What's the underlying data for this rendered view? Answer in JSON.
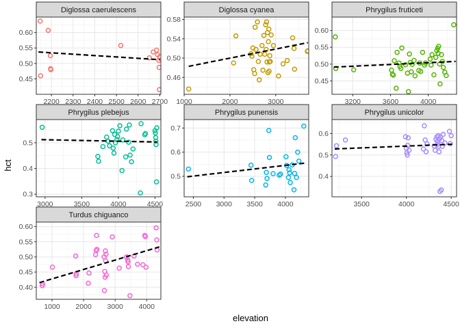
{
  "chart_data": {
    "type": "scatter",
    "xlabel": "elevation",
    "ylabel": "hct",
    "trend_line": "linear fit, dashed black",
    "panels": [
      {
        "title": "Diglossa caerulescens",
        "color": "#F8766D",
        "xlim": [
          2130,
          2705
        ],
        "ylim": [
          0.4,
          0.65
        ],
        "x_ticks": [
          2200,
          2300,
          2400,
          2500,
          2600,
          2700
        ],
        "y_ticks": [
          0.45,
          0.5,
          0.55,
          0.6
        ],
        "y_tick_labels": [
          "0.45",
          "0.50",
          "0.55",
          "0.60"
        ],
        "fit": [
          [
            2140,
            0.537
          ],
          [
            2700,
            0.512
          ]
        ],
        "points": [
          [
            2148,
            0.637
          ],
          [
            2150,
            0.46
          ],
          [
            2185,
            0.607
          ],
          [
            2195,
            0.525
          ],
          [
            2196,
            0.483
          ],
          [
            2197,
            0.48
          ],
          [
            2520,
            0.558
          ],
          [
            2652,
            0.518
          ],
          [
            2670,
            0.537
          ],
          [
            2685,
            0.543
          ],
          [
            2690,
            0.528
          ],
          [
            2695,
            0.51
          ],
          [
            2697,
            0.487
          ],
          [
            2698,
            0.415
          ],
          [
            2700,
            0.522
          ]
        ]
      },
      {
        "title": "Diglossa cyanea",
        "color": "#C49A00",
        "xlim": [
          1000,
          3720
        ],
        "ylim": [
          0.425,
          0.585
        ],
        "x_ticks": [
          1000,
          2000,
          3000
        ],
        "y_ticks": [
          0.46,
          0.5,
          0.54,
          0.58
        ],
        "y_tick_labels": [
          "0.46",
          "0.50",
          "0.54",
          "0.58"
        ],
        "fit": [
          [
            1100,
            0.483
          ],
          [
            3700,
            0.532
          ]
        ],
        "points": [
          [
            1100,
            0.436
          ],
          [
            2080,
            0.49
          ],
          [
            2130,
            0.546
          ],
          [
            2460,
            0.509
          ],
          [
            2480,
            0.504
          ],
          [
            2500,
            0.521
          ],
          [
            2520,
            0.476
          ],
          [
            2540,
            0.468
          ],
          [
            2550,
            0.564
          ],
          [
            2570,
            0.518
          ],
          [
            2600,
            0.575
          ],
          [
            2620,
            0.493
          ],
          [
            2640,
            0.455
          ],
          [
            2660,
            0.508
          ],
          [
            2700,
            0.526
          ],
          [
            2720,
            0.475
          ],
          [
            2740,
            0.547
          ],
          [
            2760,
            0.508
          ],
          [
            2780,
            0.569
          ],
          [
            2790,
            0.518
          ],
          [
            2800,
            0.575
          ],
          [
            2810,
            0.492
          ],
          [
            2820,
            0.553
          ],
          [
            2830,
            0.47
          ],
          [
            2840,
            0.534
          ],
          [
            2850,
            0.56
          ],
          [
            2855,
            0.473
          ],
          [
            2860,
            0.492
          ],
          [
            2870,
            0.505
          ],
          [
            2880,
            0.493
          ],
          [
            2900,
            0.548
          ],
          [
            2950,
            0.526
          ],
          [
            3060,
            0.463
          ],
          [
            3160,
            0.488
          ],
          [
            3250,
            0.495
          ],
          [
            3370,
            0.542
          ],
          [
            3400,
            0.52
          ],
          [
            3410,
            0.477
          ],
          [
            3690,
            0.514
          ],
          [
            3700,
            0.515
          ]
        ]
      },
      {
        "title": "Phrygilus fruticeti",
        "color": "#53B400",
        "xlim": [
          2980,
          4300
        ],
        "ylim": [
          0.41,
          0.64
        ],
        "x_ticks": [
          3200,
          3600,
          4000
        ],
        "y_ticks": [
          0.45,
          0.5,
          0.55,
          0.6
        ],
        "y_tick_labels": [
          "0.45",
          "0.50",
          "0.55",
          "0.60"
        ],
        "fit": [
          [
            3000,
            0.491
          ],
          [
            4290,
            0.508
          ]
        ],
        "points": [
          [
            3015,
            0.581
          ],
          [
            3020,
            0.487
          ],
          [
            3210,
            0.483
          ],
          [
            3610,
            0.482
          ],
          [
            3620,
            0.47
          ],
          [
            3630,
            0.467
          ],
          [
            3640,
            0.51
          ],
          [
            3660,
            0.428
          ],
          [
            3670,
            0.535
          ],
          [
            3690,
            0.503
          ],
          [
            3700,
            0.493
          ],
          [
            3710,
            0.487
          ],
          [
            3720,
            0.548
          ],
          [
            3760,
            0.498
          ],
          [
            3780,
            0.473
          ],
          [
            3790,
            0.418
          ],
          [
            3800,
            0.53
          ],
          [
            3810,
            0.505
          ],
          [
            3820,
            0.477
          ],
          [
            3830,
            0.499
          ],
          [
            3850,
            0.511
          ],
          [
            3860,
            0.465
          ],
          [
            3900,
            0.481
          ],
          [
            3910,
            0.503
          ],
          [
            3920,
            0.478
          ],
          [
            3940,
            0.535
          ],
          [
            3960,
            0.497
          ],
          [
            3970,
            0.503
          ],
          [
            4020,
            0.515
          ],
          [
            4030,
            0.497
          ],
          [
            4040,
            0.528
          ],
          [
            4060,
            0.468
          ],
          [
            4080,
            0.52
          ],
          [
            4090,
            0.54
          ],
          [
            4100,
            0.547
          ],
          [
            4105,
            0.532
          ],
          [
            4110,
            0.553
          ],
          [
            4120,
            0.5
          ],
          [
            4125,
            0.441
          ],
          [
            4140,
            0.528
          ],
          [
            4150,
            0.508
          ],
          [
            4160,
            0.49
          ],
          [
            4175,
            0.476
          ],
          [
            4190,
            0.466
          ],
          [
            4270,
            0.617
          ]
        ]
      },
      {
        "title": "Phrygilus plebejus",
        "color": "#00C094",
        "xlim": [
          2880,
          4580
        ],
        "ylim": [
          0.29,
          0.59
        ],
        "x_ticks": [
          3000,
          3500,
          4000,
          4500
        ],
        "y_ticks": [
          0.3,
          0.4,
          0.5
        ],
        "y_tick_labels": [
          "0.3",
          "0.4",
          "0.5"
        ],
        "fit": [
          [
            2950,
            0.512
          ],
          [
            4530,
            0.503
          ]
        ],
        "points": [
          [
            2960,
            0.56
          ],
          [
            3720,
            0.447
          ],
          [
            3730,
            0.428
          ],
          [
            3790,
            0.485
          ],
          [
            3840,
            0.522
          ],
          [
            3860,
            0.506
          ],
          [
            3880,
            0.488
          ],
          [
            3920,
            0.547
          ],
          [
            3930,
            0.479
          ],
          [
            3940,
            0.46
          ],
          [
            3950,
            0.532
          ],
          [
            3960,
            0.5
          ],
          [
            3980,
            0.512
          ],
          [
            3990,
            0.524
          ],
          [
            4000,
            0.545
          ],
          [
            4020,
            0.566
          ],
          [
            4050,
            0.392
          ],
          [
            4060,
            0.511
          ],
          [
            4100,
            0.445
          ],
          [
            4110,
            0.553
          ],
          [
            4140,
            0.502
          ],
          [
            4150,
            0.569
          ],
          [
            4160,
            0.452
          ],
          [
            4180,
            0.426
          ],
          [
            4200,
            0.476
          ],
          [
            4300,
            0.305
          ],
          [
            4310,
            0.574
          ],
          [
            4360,
            0.531
          ],
          [
            4370,
            0.536
          ],
          [
            4500,
            0.547
          ],
          [
            4505,
            0.538
          ],
          [
            4510,
            0.52
          ],
          [
            4512,
            0.506
          ],
          [
            4515,
            0.493
          ],
          [
            4520,
            0.348
          ],
          [
            4525,
            0.558
          ]
        ]
      },
      {
        "title": "Phrygilus punensis",
        "color": "#00B6EB",
        "xlim": [
          2350,
          4380
        ],
        "ylim": [
          0.415,
          0.735
        ],
        "x_ticks": [
          2500,
          3000,
          3500,
          4000
        ],
        "y_ticks": [
          0.5,
          0.6,
          0.7
        ],
        "y_tick_labels": [
          "0.5",
          "0.6",
          "0.7"
        ],
        "fit": [
          [
            2400,
            0.498
          ],
          [
            4330,
            0.555
          ]
        ],
        "points": [
          [
            2420,
            0.53
          ],
          [
            3440,
            0.546
          ],
          [
            3450,
            0.483
          ],
          [
            3680,
            0.464
          ],
          [
            3690,
            0.516
          ],
          [
            3700,
            0.491
          ],
          [
            3730,
            0.69
          ],
          [
            3740,
            0.578
          ],
          [
            3800,
            0.511
          ],
          [
            3900,
            0.505
          ],
          [
            3920,
            0.509
          ],
          [
            4010,
            0.581
          ],
          [
            4020,
            0.545
          ],
          [
            4050,
            0.495
          ],
          [
            4060,
            0.527
          ],
          [
            4070,
            0.514
          ],
          [
            4080,
            0.474
          ],
          [
            4110,
            0.547
          ],
          [
            4140,
            0.444
          ],
          [
            4150,
            0.512
          ],
          [
            4160,
            0.66
          ],
          [
            4180,
            0.495
          ],
          [
            4200,
            0.6
          ],
          [
            4220,
            0.563
          ],
          [
            4300,
            0.708
          ]
        ]
      },
      {
        "title": "Phrygilus unicolor",
        "color": "#A58AFF",
        "xlim": [
          3170,
          4560
        ],
        "ylim": [
          0.305,
          0.665
        ],
        "x_ticks": [
          3500,
          4000,
          4500
        ],
        "y_ticks": [
          0.4,
          0.5,
          0.6
        ],
        "y_tick_labels": [
          "0.4",
          "0.5",
          "0.6"
        ],
        "fit": [
          [
            3200,
            0.528
          ],
          [
            4510,
            0.55
          ]
        ],
        "points": [
          [
            3210,
            0.493
          ],
          [
            3220,
            0.543
          ],
          [
            3320,
            0.57
          ],
          [
            3990,
            0.585
          ],
          [
            4000,
            0.53
          ],
          [
            4005,
            0.51
          ],
          [
            4010,
            0.5
          ],
          [
            4015,
            0.545
          ],
          [
            4020,
            0.58
          ],
          [
            4030,
            0.522
          ],
          [
            4190,
            0.528
          ],
          [
            4200,
            0.636
          ],
          [
            4210,
            0.57
          ],
          [
            4220,
            0.515
          ],
          [
            4230,
            0.552
          ],
          [
            4310,
            0.542
          ],
          [
            4320,
            0.522
          ],
          [
            4330,
            0.573
          ],
          [
            4340,
            0.585
          ],
          [
            4345,
            0.563
          ],
          [
            4350,
            0.55
          ],
          [
            4355,
            0.59
          ],
          [
            4360,
            0.54
          ],
          [
            4365,
            0.515
          ],
          [
            4370,
            0.575
          ],
          [
            4375,
            0.33
          ],
          [
            4380,
            0.585
          ],
          [
            4390,
            0.337
          ],
          [
            4395,
            0.567
          ],
          [
            4400,
            0.54
          ],
          [
            4410,
            0.596
          ],
          [
            4430,
            0.556
          ],
          [
            4480,
            0.61
          ],
          [
            4490,
            0.553
          ],
          [
            4500,
            0.59
          ]
        ]
      },
      {
        "title": "Turdus chiguanco",
        "color": "#FB61D7",
        "xlim": [
          500,
          4450
        ],
        "ylim": [
          0.36,
          0.615
        ],
        "x_ticks": [
          1000,
          2000,
          3000,
          4000
        ],
        "y_ticks": [
          0.4,
          0.45,
          0.5,
          0.55,
          0.6
        ],
        "y_tick_labels": [
          "0.40",
          "0.45",
          "0.50",
          "0.55",
          "0.60"
        ],
        "fit": [
          [
            600,
            0.415
          ],
          [
            4400,
            0.533
          ]
        ],
        "points": [
          [
            690,
            0.405
          ],
          [
            700,
            0.411
          ],
          [
            1010,
            0.466
          ],
          [
            1750,
            0.503
          ],
          [
            1760,
            0.438
          ],
          [
            1770,
            0.444
          ],
          [
            2150,
            0.413
          ],
          [
            2170,
            0.447
          ],
          [
            2380,
            0.508
          ],
          [
            2400,
            0.521
          ],
          [
            2410,
            0.571
          ],
          [
            2420,
            0.525
          ],
          [
            2650,
            0.5
          ],
          [
            2660,
            0.389
          ],
          [
            2670,
            0.452
          ],
          [
            2680,
            0.433
          ],
          [
            2690,
            0.52
          ],
          [
            2700,
            0.487
          ],
          [
            2710,
            0.509
          ],
          [
            2720,
            0.44
          ],
          [
            2910,
            0.566
          ],
          [
            3130,
            0.463
          ],
          [
            3360,
            0.5
          ],
          [
            3400,
            0.49
          ],
          [
            3410,
            0.484
          ],
          [
            3420,
            0.468
          ],
          [
            3470,
            0.372
          ],
          [
            3600,
            0.503
          ],
          [
            3710,
            0.476
          ],
          [
            3880,
            0.474
          ],
          [
            3940,
            0.571
          ],
          [
            3960,
            0.567
          ],
          [
            3980,
            0.466
          ],
          [
            4300,
            0.596
          ],
          [
            4320,
            0.556
          ],
          [
            4330,
            0.523
          ]
        ]
      }
    ]
  }
}
